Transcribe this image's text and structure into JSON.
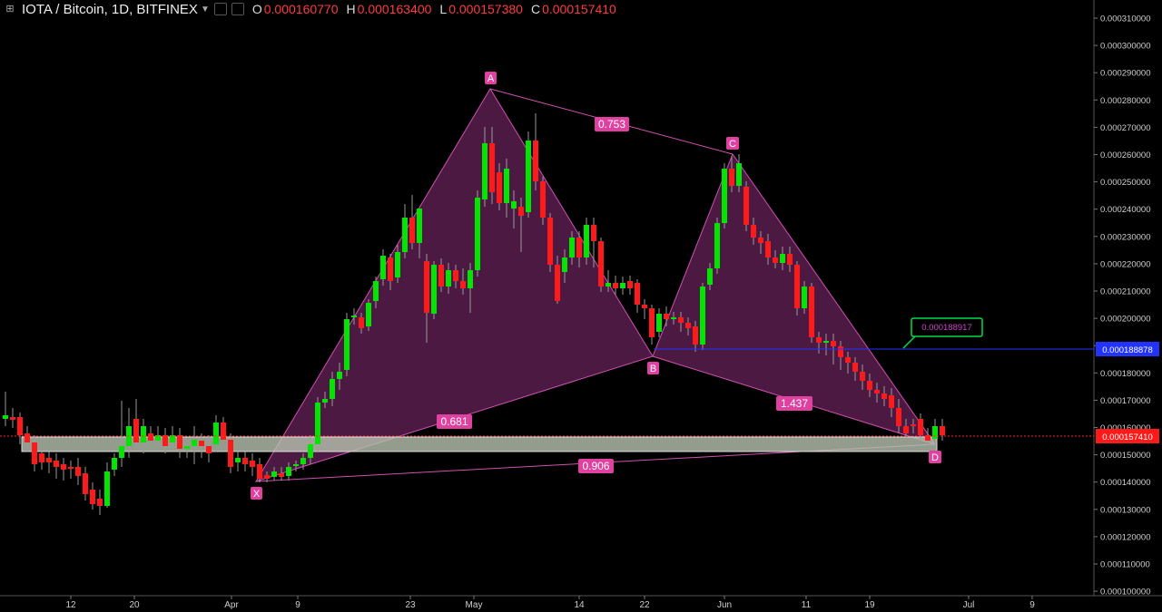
{
  "header": {
    "menu_icon": "crosshair-icon",
    "symbol": "IOTA / Bitcoin, 1D, BITFINEX",
    "ohlc": [
      {
        "key": "O",
        "value": "0.000160770"
      },
      {
        "key": "H",
        "value": "0.000163400"
      },
      {
        "key": "L",
        "value": "0.000157380"
      },
      {
        "key": "C",
        "value": "0.000157410"
      }
    ]
  },
  "price_axis": {
    "ticks": [
      "0.000310000",
      "0.000300000",
      "0.000290000",
      "0.000280000",
      "0.000270000",
      "0.000260000",
      "0.000250000",
      "0.000240000",
      "0.000230000",
      "0.000220000",
      "0.000210000",
      "0.000200000",
      "0.000190000",
      "0.000180000",
      "0.000170000",
      "0.000160000",
      "0.000150000",
      "0.000140000",
      "0.000130000",
      "0.000120000",
      "0.000110000",
      "0.000100000"
    ],
    "blue_line_label": "0.000188878",
    "last_price_label": "0.000157410"
  },
  "time_axis": {
    "ticks": [
      "12",
      "20",
      "Apr",
      "9",
      "23",
      "May",
      "14",
      "22",
      "Jun",
      "11",
      "19",
      "Jul",
      "9"
    ]
  },
  "pattern": {
    "points": {
      "X": "X",
      "A": "A",
      "B": "B",
      "C": "C",
      "D": "D"
    },
    "ratios": {
      "xb": "0.681",
      "ac": "0.753",
      "bd": "1.437",
      "xd": "0.906"
    },
    "callout": "0.000188917"
  },
  "colors": {
    "up": "#00e600",
    "down": "#ff1a1a",
    "pattern_fill": "#8b2e7a",
    "point_label": "#e040a0",
    "blue_line": "#2233ff"
  }
}
